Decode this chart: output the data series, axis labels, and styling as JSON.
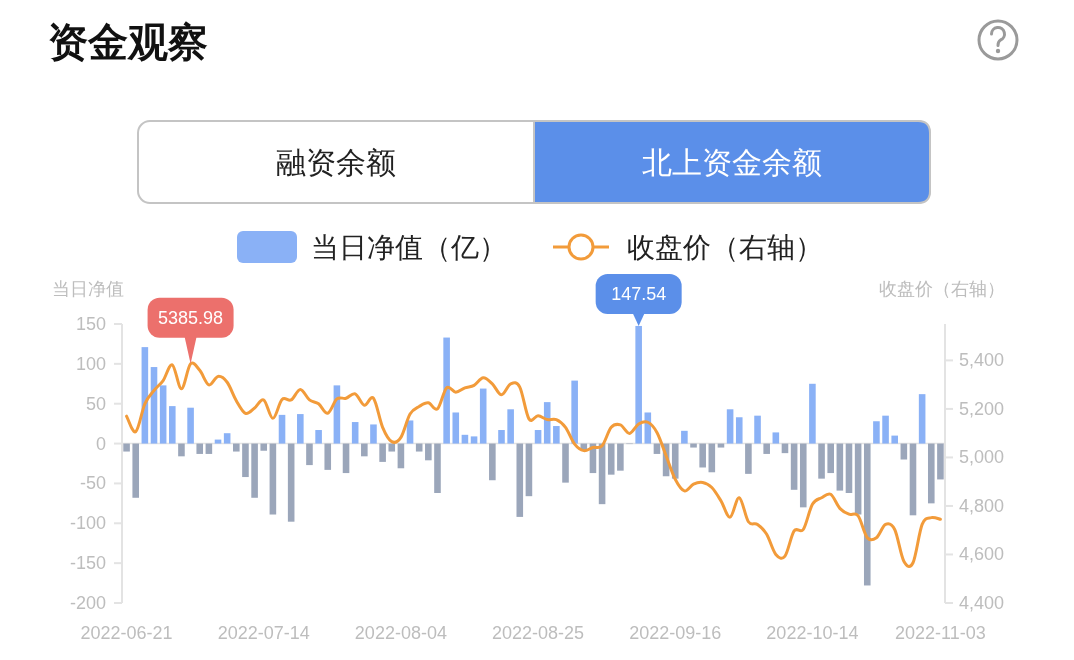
{
  "chart_data": {
    "type": "bar",
    "title": "资金观察",
    "ylabel": "当日净值",
    "y2label": "收盘价（右轴）",
    "legend": "top",
    "categories": [
      "2022-06-21",
      null,
      null,
      null,
      null,
      null,
      null,
      null,
      null,
      null,
      null,
      null,
      null,
      null,
      null,
      "2022-07-14",
      null,
      null,
      null,
      null,
      null,
      null,
      null,
      null,
      null,
      null,
      null,
      null,
      null,
      null,
      "2022-08-04",
      null,
      null,
      null,
      null,
      null,
      null,
      null,
      null,
      null,
      null,
      null,
      null,
      null,
      null,
      "2022-08-25",
      null,
      null,
      null,
      null,
      null,
      null,
      null,
      null,
      null,
      null,
      null,
      null,
      null,
      null,
      "2022-09-16",
      null,
      null,
      null,
      null,
      null,
      null,
      null,
      null,
      null,
      null,
      null,
      null,
      null,
      null,
      "2022-10-14",
      null,
      null,
      null,
      null,
      null,
      null,
      null,
      null,
      null,
      null,
      null,
      null,
      null,
      "2022-11-03"
    ],
    "series": [
      {
        "name": "当日净值（亿）",
        "color": "#8ab1f6",
        "colors": [
          "#9ba6ba",
          "#9ba6ba",
          "#8ab1f6",
          "#8ab1f6",
          "#8ab1f6",
          "#8ab1f6",
          "#9ba6ba",
          "#8ab1f6",
          "#9ba6ba",
          "#9ba6ba",
          "#8ab1f6",
          "#8ab1f6",
          "#9ba6ba",
          "#9ba6ba",
          "#9ba6ba",
          "#9ba6ba",
          "#9ba6ba",
          "#8ab1f6",
          "#9ba6ba",
          "#8ab1f6",
          "#9ba6ba",
          "#8ab1f6",
          "#9ba6ba",
          "#8ab1f6",
          "#9ba6ba",
          "#8ab1f6",
          "#9ba6ba",
          "#8ab1f6",
          "#9ba6ba",
          "#9ba6ba",
          "#9ba6ba",
          "#8ab1f6",
          "#9ba6ba",
          "#9ba6ba",
          "#9ba6ba",
          "#8ab1f6",
          "#8ab1f6",
          "#8ab1f6",
          "#8ab1f6",
          "#8ab1f6",
          "#9ba6ba",
          "#8ab1f6",
          "#8ab1f6",
          "#9ba6ba",
          "#9ba6ba",
          "#8ab1f6",
          "#8ab1f6",
          "#8ab1f6",
          "#9ba6ba",
          "#8ab1f6",
          "#9ba6ba",
          "#9ba6ba",
          "#9ba6ba",
          "#9ba6ba",
          "#9ba6ba",
          "#9ba6ba",
          "#8ab1f6",
          "#8ab1f6",
          "#9ba6ba",
          "#9ba6ba",
          "#9ba6ba",
          "#8ab1f6",
          "#9ba6ba",
          "#9ba6ba",
          "#9ba6ba",
          "#9ba6ba",
          "#8ab1f6",
          "#8ab1f6",
          "#9ba6ba",
          "#8ab1f6",
          "#9ba6ba",
          "#8ab1f6",
          "#9ba6ba",
          "#9ba6ba",
          "#9ba6ba",
          "#8ab1f6",
          "#9ba6ba",
          "#9ba6ba",
          "#9ba6ba",
          "#9ba6ba",
          "#9ba6ba",
          "#9ba6ba",
          "#8ab1f6",
          "#8ab1f6",
          "#8ab1f6",
          "#9ba6ba",
          "#9ba6ba",
          "#8ab1f6",
          "#9ba6ba",
          "#9ba6ba"
        ],
        "values": [
          -10,
          -68,
          121,
          96,
          73,
          47,
          -16,
          45,
          -13,
          -13,
          5,
          13,
          -10,
          -42,
          -68,
          -9,
          -89,
          36,
          -98,
          37,
          -27,
          17,
          -33,
          73,
          -37,
          27,
          -16,
          24,
          -23,
          -10,
          -31,
          29,
          -10,
          -21,
          -62,
          133,
          39,
          11,
          9,
          69,
          -46,
          17,
          43,
          -92,
          -66,
          17,
          52,
          22,
          -49,
          79,
          -8,
          -37,
          -76,
          -39,
          -34,
          0,
          147.54,
          39,
          -13,
          -41,
          -44,
          16,
          -5,
          -30,
          -36,
          -5,
          43,
          33,
          -38,
          35,
          -13,
          14,
          -12,
          -58,
          -80,
          75,
          -44,
          -37,
          -59,
          -62,
          -89,
          -178,
          28,
          35,
          10,
          -20,
          -90,
          62,
          -75,
          -45
        ],
        "value_labels": [
          null,
          null,
          null,
          null,
          null,
          null,
          null,
          null,
          null,
          null,
          null,
          null,
          null,
          null,
          null,
          null,
          null,
          null,
          null,
          null,
          null,
          null,
          null,
          null,
          null,
          null,
          null,
          null,
          null,
          null,
          null,
          null,
          null,
          null,
          null,
          null,
          null,
          null,
          null,
          null,
          null,
          null,
          null,
          null,
          null,
          null,
          null,
          null,
          null,
          null,
          null,
          null,
          null,
          null,
          null,
          null,
          "147.54",
          null,
          null,
          null,
          null,
          null,
          null,
          null,
          null,
          null,
          null,
          null,
          null,
          null,
          null,
          null,
          null,
          null,
          null,
          null,
          null,
          null,
          null,
          null,
          null,
          null,
          null,
          null,
          null,
          null,
          null,
          null,
          null,
          null
        ]
      },
      {
        "name": "收盘价（右轴）",
        "type": "line",
        "axis": "y2",
        "color": "#f29b3a",
        "values": [
          5170,
          5106,
          5221,
          5276,
          5317,
          5382,
          5283,
          5385.98,
          5359,
          5299,
          5334,
          5310,
          5234,
          5182,
          5204,
          5237,
          5161,
          5239,
          5237,
          5280,
          5237,
          5221,
          5182,
          5241,
          5244,
          5262,
          5215,
          5244,
          5124,
          5065,
          5083,
          5179,
          5210,
          5225,
          5200,
          5287,
          5269,
          5287,
          5297,
          5328,
          5303,
          5258,
          5303,
          5290,
          5159,
          5172,
          5156,
          5156,
          5124,
          5055,
          5028,
          5041,
          5048,
          5124,
          5134,
          5099,
          5138,
          5145,
          5103,
          5007,
          4910,
          4862,
          4890,
          4897,
          4876,
          4821,
          4754,
          4834,
          4735,
          4724,
          4683,
          4600,
          4593,
          4697,
          4703,
          4807,
          4834,
          4848,
          4790,
          4766,
          4759,
          4669,
          4669,
          4724,
          4703,
          4572,
          4566,
          4724,
          4752,
          4745
        ],
        "value_labels": [
          null,
          null,
          null,
          null,
          null,
          null,
          null,
          "5385.98",
          null,
          null,
          null,
          null,
          null,
          null,
          null,
          null,
          null,
          null,
          null,
          null,
          null,
          null,
          null,
          null,
          null,
          null,
          null,
          null,
          null,
          null,
          null,
          null,
          null,
          null,
          null,
          null,
          null,
          null,
          null,
          null,
          null,
          null,
          null,
          null,
          null,
          null,
          null,
          null,
          null,
          null,
          null,
          null,
          null,
          null,
          null,
          null,
          null,
          null,
          null,
          null,
          null,
          null,
          null,
          null,
          null,
          null,
          null,
          null,
          null,
          null,
          null,
          null,
          null,
          null,
          null,
          null,
          null,
          null,
          null,
          null,
          null,
          null,
          null,
          null,
          null,
          null,
          null,
          null,
          null,
          null
        ]
      }
    ],
    "ylim": [
      -200,
      150
    ],
    "yticks": [
      -200,
      -150,
      -100,
      -50,
      0,
      50,
      100,
      150
    ],
    "y2lim": [
      4400,
      5550
    ],
    "y2ticks": [
      {
        "value": 4400,
        "label": "4,400"
      },
      {
        "value": 4600,
        "label": "4,600"
      },
      {
        "value": 4800,
        "label": "4,800"
      },
      {
        "value": 5000,
        "label": "5,000"
      },
      {
        "value": 5200,
        "label": "5,200"
      },
      {
        "value": 5400,
        "label": "5,400"
      }
    ],
    "annotations": [
      "融资余额",
      "北上资金余额"
    ]
  }
}
